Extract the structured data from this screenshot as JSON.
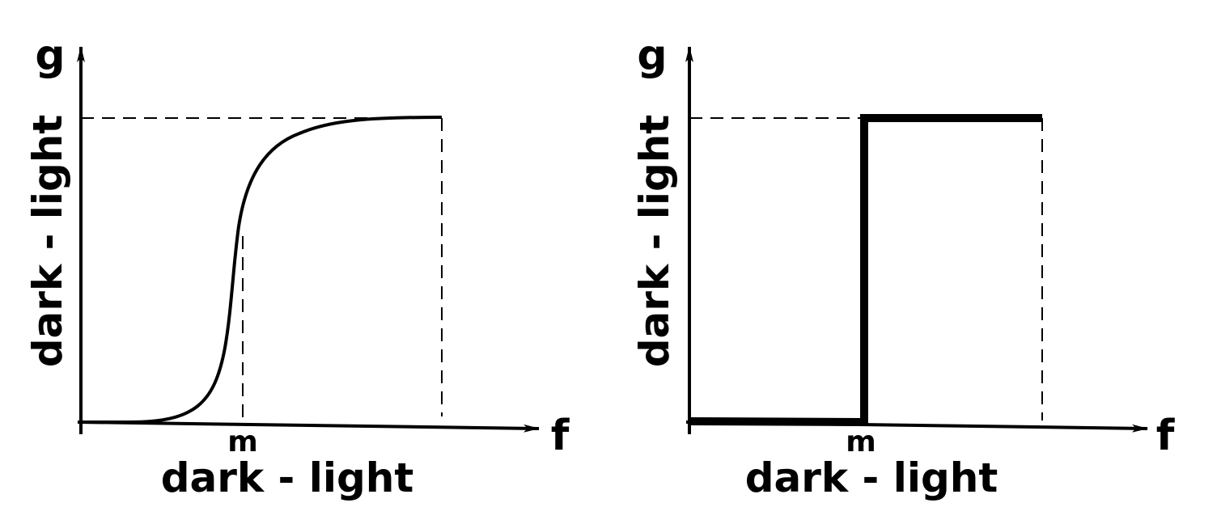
{
  "panels": [
    {
      "curve": "sigmoid",
      "y_axis_symbol": "g",
      "y_axis_label": "dark - light",
      "x_axis_symbol": "f",
      "x_axis_label": "dark - light",
      "m_label": "m"
    },
    {
      "curve": "step",
      "y_axis_symbol": "g",
      "y_axis_label": "dark - light",
      "x_axis_symbol": "f",
      "x_axis_label": "dark - light",
      "m_label": "m"
    }
  ],
  "colors": {
    "ink": "#000000",
    "background": "#ffffff"
  }
}
